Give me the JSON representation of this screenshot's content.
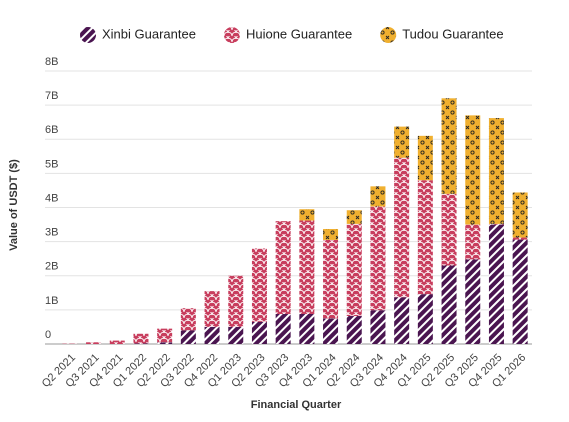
{
  "chart_data": {
    "type": "stacked_bar",
    "y_label": "Value of USDT ($)",
    "x_label": "Financial Quarter",
    "categories": [
      "Q2 2021",
      "Q3 2021",
      "Q4 2021",
      "Q1 2022",
      "Q2 2022",
      "Q3 2022",
      "Q4 2022",
      "Q1 2023",
      "Q2 2023",
      "Q3 2023",
      "Q4 2023",
      "Q1 2024",
      "Q2 2024",
      "Q3 2024",
      "Q4 2024",
      "Q1 2025",
      "Q2 2025",
      "Q3 2025",
      "Q4 2025",
      "Q1 2026"
    ],
    "series": [
      {
        "name": "Xinbi Guarantee",
        "color": "#4a1550",
        "values": [
          0,
          0,
          0,
          0.02,
          0.05,
          0.4,
          0.5,
          0.5,
          0.65,
          0.88,
          0.88,
          0.75,
          0.82,
          0.99,
          1.37,
          1.46,
          2.3,
          2.48,
          3.5,
          3.06
        ]
      },
      {
        "name": "Huione Guarantee",
        "color": "#c83e5e",
        "values": [
          0.01,
          0.05,
          0.1,
          0.28,
          0.4,
          0.65,
          1.05,
          1.5,
          2.15,
          2.72,
          2.74,
          2.3,
          2.7,
          3.04,
          4.09,
          3.34,
          2.1,
          1.02,
          0.02,
          0.06
        ]
      },
      {
        "name": "Tudou Guarantee",
        "color": "#f0b030",
        "values": [
          0,
          0,
          0,
          0,
          0,
          0,
          0,
          0,
          0,
          0,
          0.33,
          0.32,
          0.4,
          0.59,
          0.91,
          1.3,
          2.8,
          3.2,
          3.1,
          1.32
        ]
      }
    ],
    "ylim": [
      0,
      8
    ],
    "yticks": [
      0,
      {
        "value": 1,
        "label": "1B"
      },
      {
        "value": 2,
        "label": "2B"
      },
      {
        "value": 3,
        "label": "3B"
      },
      {
        "value": 4,
        "label": "4B"
      },
      {
        "value": 5,
        "label": "5B"
      },
      {
        "value": 6,
        "label": "6B"
      },
      {
        "value": 7,
        "label": "7B"
      },
      {
        "value": 8,
        "label": "8B"
      }
    ],
    "grid": true
  }
}
